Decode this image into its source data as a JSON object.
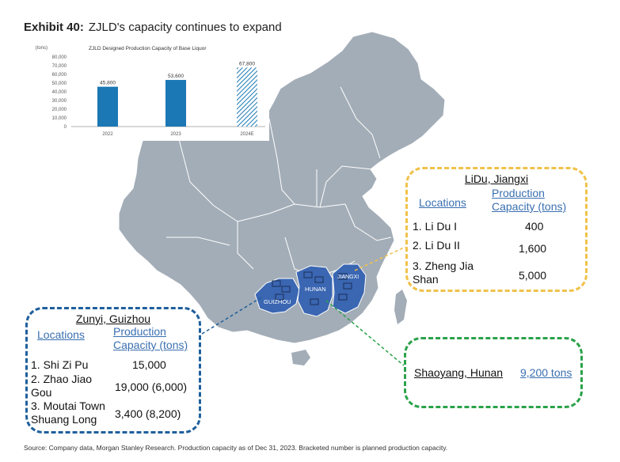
{
  "exhibit": {
    "label": "Exhibit 40:",
    "title": "ZJLD's capacity continues to expand"
  },
  "chart_data": {
    "type": "bar",
    "title": "ZJLD Designed Production Capacity of Base Liquor",
    "unit_label": "(tons)",
    "categories": [
      "2022",
      "2023",
      "2024E"
    ],
    "values": [
      45800,
      53600,
      67800
    ],
    "value_labels": [
      "45,800",
      "53,600",
      "67,800"
    ],
    "yticks": [
      "0",
      "10,000",
      "20,000",
      "30,000",
      "40,000",
      "50,000",
      "60,000",
      "70,000",
      "80,000"
    ],
    "ylim": [
      0,
      80000
    ],
    "bar_color": "#1b78b4",
    "estimate_pattern": "hatched"
  },
  "map": {
    "land_color": "#a3adb7",
    "highlight_color": "#3a66b2",
    "provinces": [
      "GUIZHOU",
      "HUNAN",
      "JIANGXI"
    ]
  },
  "callouts": {
    "lidu": {
      "title": "LiDu, Jiangxi",
      "col_locations": "Locations",
      "col_capacity": "Production Capacity (tons)",
      "rows": [
        {
          "loc": "1. Li Du I",
          "cap": "400"
        },
        {
          "loc": "2. Li Du II",
          "cap": "1,600"
        },
        {
          "loc": "3. Zheng Jia Shan",
          "cap": "5,000"
        }
      ],
      "color": "#f0c24a"
    },
    "zunyi": {
      "title": "Zunyi, Guizhou",
      "col_locations": "Locations",
      "col_capacity": "Production Capacity (tons)",
      "rows": [
        {
          "loc": "1. Shi Zi Pu",
          "cap": "15,000"
        },
        {
          "loc": "2. Zhao Jiao Gou",
          "cap": "19,000 (6,000)"
        },
        {
          "loc": "3. Moutai Town Shuang Long",
          "cap": "3,400 (8,200)"
        }
      ],
      "color": "#1f5f9c"
    },
    "shaoyang": {
      "title": "Shaoyang, Hunan",
      "capacity": "9,200 tons",
      "color": "#2aa24a"
    }
  },
  "footer": "Source: Company data, Morgan Stanley Research. Production capacity as of Dec 31, 2023. Bracketed number is planned production capacity."
}
